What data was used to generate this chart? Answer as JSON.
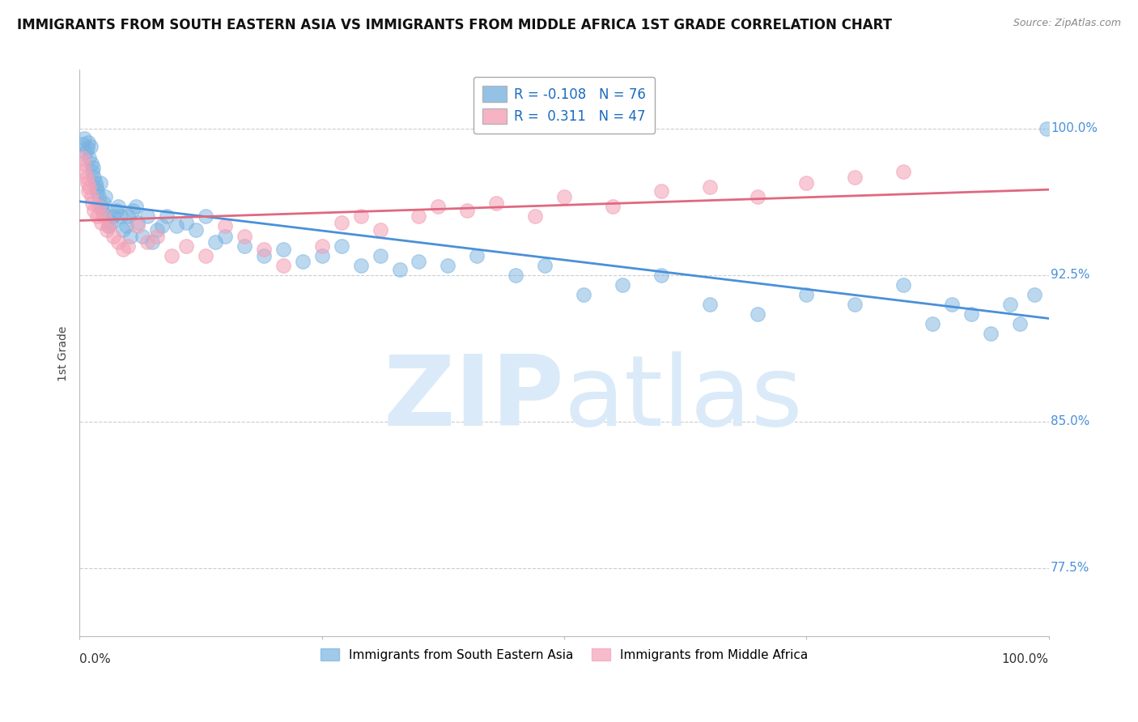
{
  "title": "IMMIGRANTS FROM SOUTH EASTERN ASIA VS IMMIGRANTS FROM MIDDLE AFRICA 1ST GRADE CORRELATION CHART",
  "source": "Source: ZipAtlas.com",
  "ylabel": "1st Grade",
  "yticks": [
    77.5,
    85.0,
    92.5,
    100.0
  ],
  "ytick_labels": [
    "77.5%",
    "85.0%",
    "92.5%",
    "100.0%"
  ],
  "xlim": [
    0.0,
    100.0
  ],
  "ylim": [
    74.0,
    103.0
  ],
  "legend_blue_r": "R = -0.108",
  "legend_blue_n": "N = 76",
  "legend_pink_r": "R =  0.311",
  "legend_pink_n": "N = 47",
  "blue_color": "#7ab3e0",
  "pink_color": "#f4a0b5",
  "blue_line_color": "#4a90d9",
  "pink_line_color": "#e06880",
  "watermark_color": "#daeaf8",
  "blue_x": [
    0.3,
    0.5,
    0.6,
    0.8,
    0.9,
    1.0,
    1.1,
    1.2,
    1.3,
    1.4,
    1.5,
    1.6,
    1.7,
    1.8,
    2.0,
    2.1,
    2.2,
    2.3,
    2.5,
    2.6,
    2.8,
    3.0,
    3.2,
    3.5,
    3.8,
    4.0,
    4.2,
    4.5,
    4.8,
    5.0,
    5.2,
    5.5,
    5.8,
    6.0,
    6.5,
    7.0,
    7.5,
    8.0,
    8.5,
    9.0,
    10.0,
    11.0,
    12.0,
    13.0,
    14.0,
    15.0,
    17.0,
    19.0,
    21.0,
    23.0,
    25.0,
    27.0,
    29.0,
    31.0,
    33.0,
    35.0,
    38.0,
    41.0,
    45.0,
    48.0,
    52.0,
    56.0,
    60.0,
    65.0,
    70.0,
    75.0,
    80.0,
    85.0,
    88.0,
    90.0,
    92.0,
    94.0,
    96.0,
    97.0,
    98.5,
    99.8
  ],
  "blue_y": [
    99.2,
    99.5,
    98.8,
    99.0,
    99.3,
    98.5,
    99.1,
    98.2,
    97.8,
    98.0,
    97.5,
    97.2,
    97.0,
    96.8,
    96.5,
    97.2,
    96.0,
    95.8,
    96.2,
    96.5,
    95.5,
    95.0,
    95.2,
    95.5,
    95.8,
    96.0,
    95.5,
    94.8,
    95.0,
    95.5,
    94.5,
    95.8,
    96.0,
    95.2,
    94.5,
    95.5,
    94.2,
    94.8,
    95.0,
    95.5,
    95.0,
    95.2,
    94.8,
    95.5,
    94.2,
    94.5,
    94.0,
    93.5,
    93.8,
    93.2,
    93.5,
    94.0,
    93.0,
    93.5,
    92.8,
    93.2,
    93.0,
    93.5,
    92.5,
    93.0,
    91.5,
    92.0,
    92.5,
    91.0,
    90.5,
    91.5,
    91.0,
    92.0,
    90.0,
    91.0,
    90.5,
    89.5,
    91.0,
    90.0,
    91.5,
    100.0
  ],
  "pink_x": [
    0.3,
    0.4,
    0.5,
    0.7,
    0.8,
    0.9,
    1.0,
    1.2,
    1.3,
    1.5,
    1.8,
    2.0,
    2.2,
    2.5,
    2.8,
    3.0,
    3.5,
    4.0,
    4.5,
    5.0,
    6.0,
    7.0,
    8.0,
    9.5,
    11.0,
    13.0,
    15.0,
    17.0,
    19.0,
    21.0,
    25.0,
    27.0,
    29.0,
    31.0,
    35.0,
    37.0,
    40.0,
    43.0,
    47.0,
    50.0,
    55.0,
    60.0,
    65.0,
    70.0,
    75.0,
    80.0,
    85.0
  ],
  "pink_y": [
    98.5,
    98.2,
    97.8,
    97.5,
    97.2,
    96.8,
    97.0,
    96.5,
    96.2,
    95.8,
    95.5,
    96.0,
    95.2,
    95.5,
    94.8,
    95.0,
    94.5,
    94.2,
    93.8,
    94.0,
    95.0,
    94.2,
    94.5,
    93.5,
    94.0,
    93.5,
    95.0,
    94.5,
    93.8,
    93.0,
    94.0,
    95.2,
    95.5,
    94.8,
    95.5,
    96.0,
    95.8,
    96.2,
    95.5,
    96.5,
    96.0,
    96.8,
    97.0,
    96.5,
    97.2,
    97.5,
    97.8
  ]
}
